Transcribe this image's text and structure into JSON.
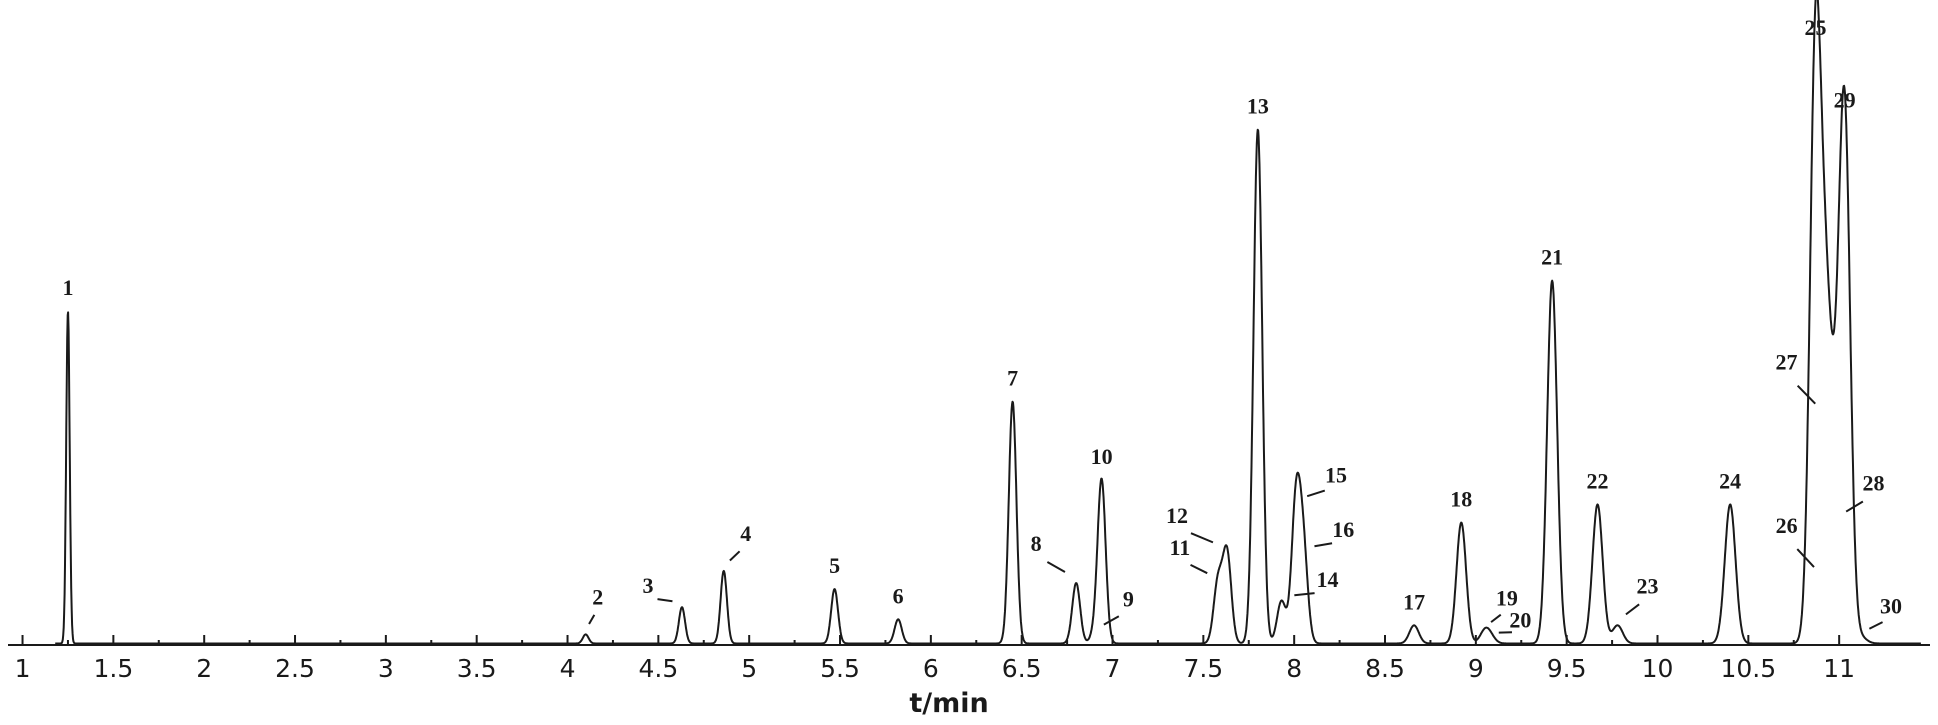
{
  "chart_data": {
    "type": "line",
    "title": "",
    "xlabel": "t/min",
    "ylabel": "",
    "xlim": [
      0.92,
      11.5
    ],
    "ylim": [
      0,
      105
    ],
    "x_ticks": [
      1,
      1.5,
      2,
      2.5,
      3,
      3.5,
      4,
      4.5,
      5,
      5.5,
      6,
      6.5,
      7,
      7.5,
      8,
      8.5,
      9,
      9.5,
      10,
      10.5,
      11
    ],
    "x_tick_labels": [
      "1",
      "1.5",
      "2",
      "2.5",
      "3",
      "3.5",
      "4",
      "4.5",
      "5",
      "5.5",
      "6",
      "6.5",
      "7",
      "7.5",
      "8",
      "8.5",
      "9",
      "9.5",
      "10",
      "10.5",
      "11"
    ],
    "grid": false,
    "peaks": [
      {
        "label": "1",
        "t": 1.25,
        "height": 55
      },
      {
        "label": "2",
        "t": 4.1,
        "height": 1.5
      },
      {
        "label": "3",
        "t": 4.63,
        "height": 6
      },
      {
        "label": "4",
        "t": 4.86,
        "height": 12
      },
      {
        "label": "5",
        "t": 5.47,
        "height": 9
      },
      {
        "label": "6",
        "t": 5.82,
        "height": 4
      },
      {
        "label": "7",
        "t": 6.45,
        "height": 40
      },
      {
        "label": "8",
        "t": 6.8,
        "height": 10
      },
      {
        "label": "9",
        "t": 6.9,
        "height": 1.5
      },
      {
        "label": "10",
        "t": 6.94,
        "height": 27
      },
      {
        "label": "11",
        "t": 7.58,
        "height": 10
      },
      {
        "label": "12",
        "t": 7.63,
        "height": 15
      },
      {
        "label": "13",
        "t": 7.8,
        "height": 85
      },
      {
        "label": "14",
        "t": 7.93,
        "height": 7
      },
      {
        "label": "15",
        "t": 8.01,
        "height": 23
      },
      {
        "label": "16",
        "t": 8.05,
        "height": 15
      },
      {
        "label": "17",
        "t": 8.66,
        "height": 3
      },
      {
        "label": "18",
        "t": 8.92,
        "height": 20
      },
      {
        "label": "19",
        "t": 9.05,
        "height": 2
      },
      {
        "label": "20",
        "t": 9.08,
        "height": 1
      },
      {
        "label": "21",
        "t": 9.42,
        "height": 60
      },
      {
        "label": "22",
        "t": 9.67,
        "height": 23
      },
      {
        "label": "23",
        "t": 9.78,
        "height": 3
      },
      {
        "label": "24",
        "t": 10.4,
        "height": 23
      },
      {
        "label": "25",
        "t": 10.87,
        "height": 98
      },
      {
        "label": "26",
        "t": 10.92,
        "height": 10
      },
      {
        "label": "27",
        "t": 10.93,
        "height": 37
      },
      {
        "label": "28",
        "t": 10.98,
        "height": 20
      },
      {
        "label": "29",
        "t": 11.03,
        "height": 86
      },
      {
        "label": "30",
        "t": 11.12,
        "height": 1
      }
    ]
  }
}
